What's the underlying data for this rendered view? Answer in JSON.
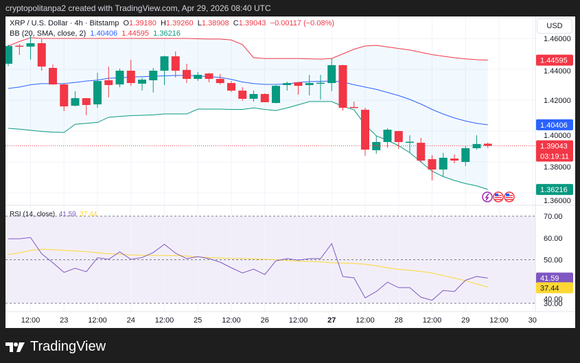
{
  "header": {
    "text": "cryptopolitanpa2 created with TradingView.com, Apr 29, 2026 08:40 UTC"
  },
  "legend": {
    "symbol": "XRP / U.S. Dollar · 4h · Bitstamp",
    "o_label": "O",
    "o": "1.39180",
    "h_label": "H",
    "h": "1.39260",
    "l_label": "L",
    "l": "1.38908",
    "c_label": "C",
    "c": "1.39043",
    "change": "−0.00117 (−0.08%)",
    "bb_label": "BB (20, SMA, close, 2)",
    "bb_basis": "1.40406",
    "bb_upper": "1.44595",
    "bb_lower": "1.36216",
    "rsi_label": "RSI (14, close)",
    "rsi_value": "41.59",
    "rsi_ma": "37.44"
  },
  "currency": "USD",
  "price_tags": {
    "upper": "1.44595",
    "basis": "1.40406",
    "last": "1.39043",
    "countdown": "03:19:11",
    "lower": "1.36216",
    "rsi": "41.59",
    "rsi_ma": "37.44"
  },
  "branding": {
    "logo_text": "TradingView"
  },
  "colors": {
    "up": "#089981",
    "down": "#f23645",
    "basis": "#2962ff",
    "upper": "#f23645",
    "lower": "#089981",
    "rsi": "#7e57c2",
    "rsi_ma": "#fdd835"
  },
  "icons": [
    "lightning-event-icon",
    "us-flag-icon",
    "us-flag-icon"
  ],
  "chart_data": [
    {
      "type": "candlestick",
      "ylim": [
        1.355,
        1.465
      ],
      "yticks": [
        "1.46000",
        "1.44000",
        "1.42000",
        "1.40000",
        "1.38000",
        "1.36000"
      ],
      "ytick_values": [
        1.46,
        1.44,
        1.42,
        1.4,
        1.38,
        1.36
      ],
      "xticks": [
        "12:00",
        "23",
        "12:00",
        "24",
        "12:00",
        "25",
        "12:00",
        "26",
        "12:00",
        "27",
        "12:00",
        "28",
        "12:00",
        "29",
        "12:00",
        "30"
      ],
      "ohlc": [
        [
          1.4436,
          1.456,
          1.442,
          1.4551
        ],
        [
          1.4553,
          1.4564,
          1.4493,
          1.4549
        ],
        [
          1.4547,
          1.4618,
          1.4462,
          1.4569
        ],
        [
          1.4569,
          1.4596,
          1.4391,
          1.4418
        ],
        [
          1.4409,
          1.4431,
          1.43,
          1.4302
        ],
        [
          1.4302,
          1.431,
          1.4129,
          1.416
        ],
        [
          1.4164,
          1.4258,
          1.416,
          1.4213
        ],
        [
          1.4213,
          1.4215,
          1.4102,
          1.4169
        ],
        [
          1.4173,
          1.4378,
          1.4151,
          1.4324
        ],
        [
          1.4329,
          1.4418,
          1.4218,
          1.4298
        ],
        [
          1.4302,
          1.4404,
          1.4284,
          1.4391
        ],
        [
          1.4391,
          1.4462,
          1.4293,
          1.4311
        ],
        [
          1.4307,
          1.4345,
          1.4262,
          1.4333
        ],
        [
          1.4329,
          1.4409,
          1.4249,
          1.4391
        ],
        [
          1.4391,
          1.4489,
          1.4298,
          1.4484
        ],
        [
          1.4484,
          1.4516,
          1.4347,
          1.4391
        ],
        [
          1.4396,
          1.4436,
          1.4311,
          1.4338
        ],
        [
          1.4338,
          1.4382,
          1.4325,
          1.4364
        ],
        [
          1.4373,
          1.4376,
          1.4316,
          1.4338
        ],
        [
          1.4338,
          1.4369,
          1.4302,
          1.4311
        ],
        [
          1.4311,
          1.4324,
          1.4253,
          1.4262
        ],
        [
          1.4262,
          1.4284,
          1.4196,
          1.4209
        ],
        [
          1.4209,
          1.4262,
          1.4191,
          1.424
        ],
        [
          1.424,
          1.4244,
          1.4187,
          1.4187
        ],
        [
          1.4182,
          1.4298,
          1.418,
          1.4293
        ],
        [
          1.4298,
          1.432,
          1.4262,
          1.4311
        ],
        [
          1.4316,
          1.4318,
          1.4236,
          1.4293
        ],
        [
          1.4298,
          1.4364,
          1.4231,
          1.4311
        ],
        [
          1.4309,
          1.4364,
          1.4204,
          1.4313
        ],
        [
          1.4311,
          1.4471,
          1.4258,
          1.4427
        ],
        [
          1.4427,
          1.4429,
          1.4133,
          1.4151
        ],
        [
          1.4156,
          1.4191,
          1.415,
          1.4151
        ],
        [
          1.4138,
          1.4151,
          1.384,
          1.388
        ],
        [
          1.3876,
          1.3969,
          1.3853,
          1.3929
        ],
        [
          1.3929,
          1.4018,
          1.3893,
          1.4009
        ],
        [
          1.4,
          1.4002,
          1.3884,
          1.3929
        ],
        [
          1.3927,
          1.3973,
          1.3858,
          1.3931
        ],
        [
          1.3924,
          1.3956,
          1.3796,
          1.3809
        ],
        [
          1.3818,
          1.3844,
          1.368,
          1.3751
        ],
        [
          1.3751,
          1.3858,
          1.3707,
          1.3827
        ],
        [
          1.3822,
          1.3849,
          1.3791,
          1.3809
        ],
        [
          1.38,
          1.3902,
          1.3773,
          1.3889
        ],
        [
          1.3889,
          1.3973,
          1.388,
          1.3916
        ],
        [
          1.3918,
          1.3926,
          1.38908,
          1.39043
        ]
      ],
      "bb_upper": [
        1.4551,
        1.458,
        1.4605,
        1.46,
        1.46,
        1.46,
        1.46,
        1.46,
        1.46,
        1.46,
        1.46,
        1.46,
        1.46,
        1.46,
        1.46,
        1.46,
        1.46,
        1.4598,
        1.4596,
        1.4596,
        1.459,
        1.456,
        1.4475,
        1.447,
        1.447,
        1.447,
        1.447,
        1.4468,
        1.4466,
        1.447,
        1.45,
        1.453,
        1.4551,
        1.4555,
        1.4545,
        1.4535,
        1.4525,
        1.451,
        1.4495,
        1.4485,
        1.4475,
        1.4468,
        1.4462,
        1.44595
      ],
      "bb_basis": [
        1.4276,
        1.4285,
        1.43,
        1.4307,
        1.4307,
        1.4307,
        1.4315,
        1.4324,
        1.433,
        1.4342,
        1.4345,
        1.435,
        1.4352,
        1.4355,
        1.4358,
        1.436,
        1.436,
        1.4358,
        1.4352,
        1.4347,
        1.4335,
        1.4318,
        1.4308,
        1.4302,
        1.4302,
        1.4305,
        1.4315,
        1.432,
        1.4322,
        1.4324,
        1.4318,
        1.43,
        1.4285,
        1.427,
        1.425,
        1.423,
        1.4205,
        1.4175,
        1.414,
        1.411,
        1.4085,
        1.4065,
        1.405,
        1.40406
      ],
      "bb_lower": [
        1.4018,
        1.4012,
        1.4005,
        1.3998,
        1.3993,
        1.3991,
        1.4044,
        1.405,
        1.4056,
        1.4089,
        1.4095,
        1.41,
        1.4102,
        1.4105,
        1.4111,
        1.4111,
        1.4111,
        1.4142,
        1.4142,
        1.4142,
        1.414,
        1.414,
        1.415,
        1.414,
        1.4133,
        1.415,
        1.417,
        1.4191,
        1.4191,
        1.4191,
        1.416,
        1.4138,
        1.404,
        1.3969,
        1.394,
        1.3905,
        1.386,
        1.38,
        1.374,
        1.3705,
        1.368,
        1.366,
        1.3645,
        1.36216
      ]
    },
    {
      "type": "line",
      "ylim": [
        23,
        77
      ],
      "yticks": [
        "70.00",
        "60.00",
        "50.00",
        "40.00",
        "30.00"
      ],
      "ytick_values": [
        70,
        60,
        50,
        40,
        30
      ],
      "band": [
        30,
        70
      ],
      "rsi": [
        59.6,
        59.6,
        60.2,
        52.7,
        48.6,
        44.2,
        46.1,
        44.5,
        50.9,
        50.2,
        53.6,
        50.2,
        51.0,
        53.3,
        57.1,
        53.0,
        50.5,
        51.4,
        50.5,
        48.9,
        46.3,
        43.9,
        45.7,
        43.2,
        49.5,
        50.5,
        49.8,
        50.5,
        50.5,
        57.4,
        42.3,
        41.7,
        32.5,
        35.4,
        39.7,
        37.2,
        37.2,
        32.8,
        31.4,
        35.9,
        35.4,
        40.6,
        42.3,
        41.59
      ],
      "rsi_ma": [
        52.4,
        53.2,
        54.3,
        54.8,
        54.6,
        54.3,
        54.0,
        53.7,
        53.2,
        52.8,
        52.5,
        52.2,
        52.0,
        52.0,
        52.0,
        51.9,
        51.7,
        51.3,
        51.0,
        50.8,
        50.6,
        50.5,
        50.4,
        50.2,
        50.0,
        49.6,
        49.4,
        49.2,
        49.0,
        48.6,
        48.5,
        48.3,
        47.9,
        47.2,
        46.3,
        45.6,
        45.2,
        44.6,
        43.9,
        42.7,
        41.6,
        40.3,
        38.9,
        37.44
      ]
    }
  ]
}
